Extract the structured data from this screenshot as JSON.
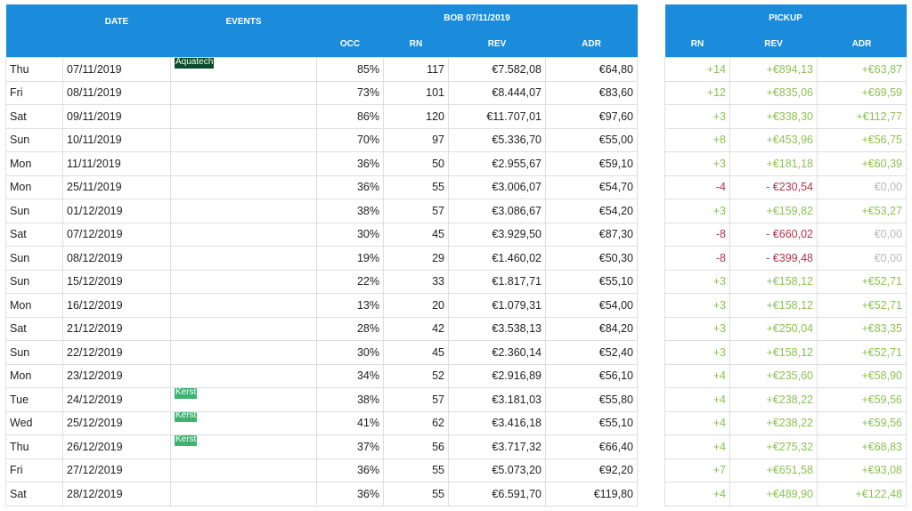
{
  "bob": {
    "title": "BOB 07/11/2019",
    "headers": {
      "date": "DATE",
      "events": "EVENTS",
      "occ": "OCC",
      "rn": "RN",
      "rev": "REV",
      "adr": "ADR"
    },
    "rows": [
      {
        "day": "Thu",
        "date": "07/11/2019",
        "event": "Aquatech",
        "event_color": "#0b4a2e",
        "occ": "85%",
        "rn": "117",
        "rev": "€7.582,08",
        "adr": "€64,80"
      },
      {
        "day": "Fri",
        "date": "08/11/2019",
        "event": "",
        "event_color": "",
        "occ": "73%",
        "rn": "101",
        "rev": "€8.444,07",
        "adr": "€83,60"
      },
      {
        "day": "Sat",
        "date": "09/11/2019",
        "event": "",
        "event_color": "",
        "occ": "86%",
        "rn": "120",
        "rev": "€11.707,01",
        "adr": "€97,60"
      },
      {
        "day": "Sun",
        "date": "10/11/2019",
        "event": "",
        "event_color": "",
        "occ": "70%",
        "rn": "97",
        "rev": "€5.336,70",
        "adr": "€55,00"
      },
      {
        "day": "Mon",
        "date": "11/11/2019",
        "event": "",
        "event_color": "",
        "occ": "36%",
        "rn": "50",
        "rev": "€2.955,67",
        "adr": "€59,10"
      },
      {
        "day": "Mon",
        "date": "25/11/2019",
        "event": "",
        "event_color": "",
        "occ": "36%",
        "rn": "55",
        "rev": "€3.006,07",
        "adr": "€54,70"
      },
      {
        "day": "Sun",
        "date": "01/12/2019",
        "event": "",
        "event_color": "",
        "occ": "38%",
        "rn": "57",
        "rev": "€3.086,67",
        "adr": "€54,20"
      },
      {
        "day": "Sat",
        "date": "07/12/2019",
        "event": "",
        "event_color": "",
        "occ": "30%",
        "rn": "45",
        "rev": "€3.929,50",
        "adr": "€87,30"
      },
      {
        "day": "Sun",
        "date": "08/12/2019",
        "event": "",
        "event_color": "",
        "occ": "19%",
        "rn": "29",
        "rev": "€1.460,02",
        "adr": "€50,30"
      },
      {
        "day": "Sun",
        "date": "15/12/2019",
        "event": "",
        "event_color": "",
        "occ": "22%",
        "rn": "33",
        "rev": "€1.817,71",
        "adr": "€55,10"
      },
      {
        "day": "Mon",
        "date": "16/12/2019",
        "event": "",
        "event_color": "",
        "occ": "13%",
        "rn": "20",
        "rev": "€1.079,31",
        "adr": "€54,00"
      },
      {
        "day": "Sat",
        "date": "21/12/2019",
        "event": "",
        "event_color": "",
        "occ": "28%",
        "rn": "42",
        "rev": "€3.538,13",
        "adr": "€84,20"
      },
      {
        "day": "Sun",
        "date": "22/12/2019",
        "event": "",
        "event_color": "",
        "occ": "30%",
        "rn": "45",
        "rev": "€2.360,14",
        "adr": "€52,40"
      },
      {
        "day": "Mon",
        "date": "23/12/2019",
        "event": "",
        "event_color": "",
        "occ": "34%",
        "rn": "52",
        "rev": "€2.916,89",
        "adr": "€56,10"
      },
      {
        "day": "Tue",
        "date": "24/12/2019",
        "event": "Kerst",
        "event_color": "#3cb371",
        "occ": "38%",
        "rn": "57",
        "rev": "€3.181,03",
        "adr": "€55,80"
      },
      {
        "day": "Wed",
        "date": "25/12/2019",
        "event": "Kerst",
        "event_color": "#3cb371",
        "occ": "41%",
        "rn": "62",
        "rev": "€3.416,18",
        "adr": "€55,10"
      },
      {
        "day": "Thu",
        "date": "26/12/2019",
        "event": "Kerst",
        "event_color": "#3cb371",
        "occ": "37%",
        "rn": "56",
        "rev": "€3.717,32",
        "adr": "€66,40"
      },
      {
        "day": "Fri",
        "date": "27/12/2019",
        "event": "",
        "event_color": "",
        "occ": "36%",
        "rn": "55",
        "rev": "€5.073,20",
        "adr": "€92,20"
      },
      {
        "day": "Sat",
        "date": "28/12/2019",
        "event": "",
        "event_color": "",
        "occ": "36%",
        "rn": "55",
        "rev": "€6.591,70",
        "adr": "€119,80"
      }
    ]
  },
  "pickup": {
    "title": "PICKUP",
    "headers": {
      "rn": "RN",
      "rev": "REV",
      "adr": "ADR"
    },
    "rows": [
      {
        "rn": "+14",
        "rev": "+€894,13",
        "adr": "+€63,87",
        "tone": "pos"
      },
      {
        "rn": "+12",
        "rev": "+€835,06",
        "adr": "+€69,59",
        "tone": "pos"
      },
      {
        "rn": "+3",
        "rev": "+€338,30",
        "adr": "+€112,77",
        "tone": "pos"
      },
      {
        "rn": "+8",
        "rev": "+€453,96",
        "adr": "+€56,75",
        "tone": "pos"
      },
      {
        "rn": "+3",
        "rev": "+€181,18",
        "adr": "+€60,39",
        "tone": "pos"
      },
      {
        "rn": "-4",
        "rev": "- €230,54",
        "adr": "€0,00",
        "tone": "neg"
      },
      {
        "rn": "+3",
        "rev": "+€159,82",
        "adr": "+€53,27",
        "tone": "pos"
      },
      {
        "rn": "-8",
        "rev": "- €660,02",
        "adr": "€0,00",
        "tone": "neg"
      },
      {
        "rn": "-8",
        "rev": "- €399,48",
        "adr": "€0,00",
        "tone": "neg"
      },
      {
        "rn": "+3",
        "rev": "+€158,12",
        "adr": "+€52,71",
        "tone": "pos"
      },
      {
        "rn": "+3",
        "rev": "+€158,12",
        "adr": "+€52,71",
        "tone": "pos"
      },
      {
        "rn": "+3",
        "rev": "+€250,04",
        "adr": "+€83,35",
        "tone": "pos"
      },
      {
        "rn": "+3",
        "rev": "+€158,12",
        "adr": "+€52,71",
        "tone": "pos"
      },
      {
        "rn": "+4",
        "rev": "+€235,60",
        "adr": "+€58,90",
        "tone": "pos"
      },
      {
        "rn": "+4",
        "rev": "+€238,22",
        "adr": "+€59,56",
        "tone": "pos"
      },
      {
        "rn": "+4",
        "rev": "+€238,22",
        "adr": "+€59,56",
        "tone": "pos"
      },
      {
        "rn": "+4",
        "rev": "+€275,32",
        "adr": "+€68,83",
        "tone": "pos"
      },
      {
        "rn": "+7",
        "rev": "+€651,58",
        "adr": "+€93,08",
        "tone": "pos"
      },
      {
        "rn": "+4",
        "rev": "+€489,90",
        "adr": "+€122,48",
        "tone": "pos"
      }
    ]
  },
  "colors": {
    "header_bg": "#1a8cdb",
    "positive": "#8cc152",
    "negative": "#b5334c",
    "zero": "#b8b8b8"
  }
}
